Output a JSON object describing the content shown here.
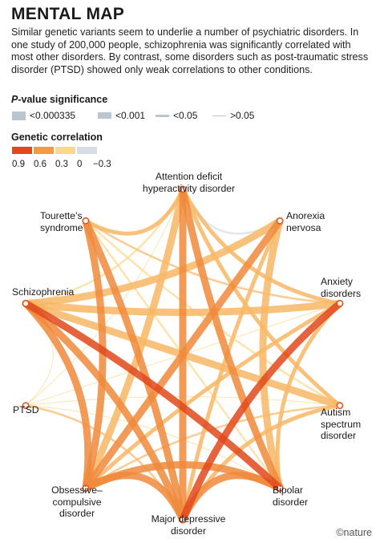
{
  "title": "MENTAL MAP",
  "subtitle": "Similar genetic variants seem to underlie a number of psychiatric disorders. In one study of 200,000 people, schizophrenia was significantly correlated with most other disorders. By contrast, some disorders such as post-traumatic stress disorder (PTSD) showed only weak correlations to other conditions.",
  "legend": {
    "pvalue": {
      "title_italic": "P",
      "title_rest": "-value significance",
      "items": [
        "<0.000335",
        "<0.001",
        "<0.05",
        ">0.05"
      ]
    },
    "correlation": {
      "title": "Genetic correlation",
      "colors": [
        "#e0491c",
        "#f39a44",
        "#fbd88b",
        "#d6dde4"
      ],
      "ticks": [
        "0.9",
        "0.6",
        "0.3",
        "0",
        "−0.3"
      ]
    }
  },
  "credit": "©nature",
  "chart_data": {
    "type": "chord-network",
    "nodes": [
      "Attention deficit hyperactivity disorder",
      "Anorexia nervosa",
      "Anxiety disorders",
      "Autism spectrum disorder",
      "Bipolar disorder",
      "Major depressive disorder",
      "Obsessive–compulsive disorder",
      "PTSD",
      "Schizophrenia",
      "Tourette’s syndrome"
    ],
    "edges": [
      {
        "source": "Schizophrenia",
        "target": "Bipolar disorder",
        "correlation": 0.7,
        "p_level": 1
      },
      {
        "source": "Major depressive disorder",
        "target": "Anxiety disorders",
        "correlation": 0.8,
        "p_level": 1
      },
      {
        "source": "Attention deficit hyperactivity disorder",
        "target": "Major depressive disorder",
        "correlation": 0.5,
        "p_level": 1
      },
      {
        "source": "Schizophrenia",
        "target": "Major depressive disorder",
        "correlation": 0.35,
        "p_level": 1
      },
      {
        "source": "Schizophrenia",
        "target": "Obsessive–compulsive disorder",
        "correlation": 0.35,
        "p_level": 1
      },
      {
        "source": "Schizophrenia",
        "target": "Anorexia nervosa",
        "correlation": 0.25,
        "p_level": 1
      },
      {
        "source": "Schizophrenia",
        "target": "Anxiety disorders",
        "correlation": 0.2,
        "p_level": 1
      },
      {
        "source": "Schizophrenia",
        "target": "Autism spectrum disorder",
        "correlation": 0.2,
        "p_level": 1
      },
      {
        "source": "Tourette’s syndrome",
        "target": "Obsessive–compulsive disorder",
        "correlation": 0.4,
        "p_level": 1
      },
      {
        "source": "Tourette’s syndrome",
        "target": "Major depressive disorder",
        "correlation": 0.3,
        "p_level": 1
      },
      {
        "source": "Tourette’s syndrome",
        "target": "Attention deficit hyperactivity disorder",
        "correlation": 0.2,
        "p_level": 2
      },
      {
        "source": "Bipolar disorder",
        "target": "Major depressive disorder",
        "correlation": 0.35,
        "p_level": 1
      },
      {
        "source": "Bipolar disorder",
        "target": "Obsessive–compulsive disorder",
        "correlation": 0.3,
        "p_level": 1
      },
      {
        "source": "Bipolar disorder",
        "target": "Anorexia nervosa",
        "correlation": 0.2,
        "p_level": 1
      },
      {
        "source": "Major depressive disorder",
        "target": "Obsessive–compulsive disorder",
        "correlation": 0.3,
        "p_level": 1
      },
      {
        "source": "Attention deficit hyperactivity disorder",
        "target": "Obsessive–compulsive disorder",
        "correlation": 0.25,
        "p_level": 1
      },
      {
        "source": "Attention deficit hyperactivity disorder",
        "target": "Anxiety disorders",
        "correlation": 0.25,
        "p_level": 2
      },
      {
        "source": "Attention deficit hyperactivity disorder",
        "target": "Autism spectrum disorder",
        "correlation": 0.2,
        "p_level": 2
      },
      {
        "source": "Attention deficit hyperactivity disorder",
        "target": "Bipolar disorder",
        "correlation": 0.35,
        "p_level": 1
      },
      {
        "source": "Attention deficit hyperactivity disorder",
        "target": "Anorexia nervosa",
        "correlation": -0.15,
        "p_level": 3
      },
      {
        "source": "Anorexia nervosa",
        "target": "Obsessive–compulsive disorder",
        "correlation": 0.5,
        "p_level": 1
      },
      {
        "source": "Anorexia nervosa",
        "target": "Major depressive disorder",
        "correlation": 0.2,
        "p_level": 2
      },
      {
        "source": "Anxiety disorders",
        "target": "Obsessive–compulsive disorder",
        "correlation": 0.25,
        "p_level": 2
      },
      {
        "source": "Anxiety disorders",
        "target": "Bipolar disorder",
        "correlation": 0.2,
        "p_level": 2
      },
      {
        "source": "Anxiety disorders",
        "target": "Tourette’s syndrome",
        "correlation": 0.15,
        "p_level": 3
      },
      {
        "source": "Autism spectrum disorder",
        "target": "Major depressive disorder",
        "correlation": 0.2,
        "p_level": 2
      },
      {
        "source": "Autism spectrum disorder",
        "target": "Obsessive–compulsive disorder",
        "correlation": 0.15,
        "p_level": 3
      },
      {
        "source": "Autism spectrum disorder",
        "target": "Tourette’s syndrome",
        "correlation": 0.1,
        "p_level": 3
      },
      {
        "source": "PTSD",
        "target": "Major depressive disorder",
        "correlation": 0.2,
        "p_level": 3
      },
      {
        "source": "PTSD",
        "target": "Anxiety disorders",
        "correlation": 0.1,
        "p_level": 4
      },
      {
        "source": "PTSD",
        "target": "Schizophrenia",
        "correlation": 0.1,
        "p_level": 4
      },
      {
        "source": "PTSD",
        "target": "Attention deficit hyperactivity disorder",
        "correlation": 0.1,
        "p_level": 4
      },
      {
        "source": "PTSD",
        "target": "Bipolar disorder",
        "correlation": 0.05,
        "p_level": 4
      },
      {
        "source": "PTSD",
        "target": "Autism spectrum disorder",
        "correlation": 0.05,
        "p_level": 4
      },
      {
        "source": "Tourette’s syndrome",
        "target": "Bipolar disorder",
        "correlation": 0.1,
        "p_level": 3
      },
      {
        "source": "Schizophrenia",
        "target": "Attention deficit hyperactivity disorder",
        "correlation": 0.1,
        "p_level": 3
      }
    ]
  }
}
